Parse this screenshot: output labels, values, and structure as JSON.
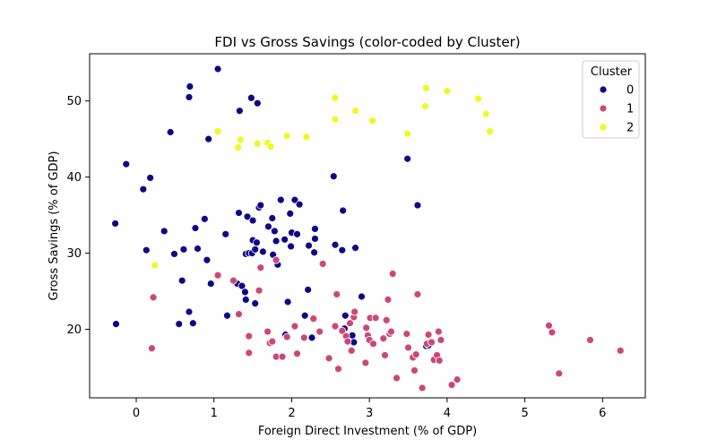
{
  "chart_data": {
    "type": "scatter",
    "title": "FDI vs Gross Savings (color-coded by Cluster)",
    "xlabel": "Foreign Direct Investment (% of GDP)",
    "ylabel": "Gross Savings (% of GDP)",
    "xlim": [
      -0.6,
      6.55
    ],
    "ylim": [
      11,
      56.2
    ],
    "xticks": [
      0,
      1,
      2,
      3,
      4,
      5,
      6
    ],
    "yticks": [
      20,
      30,
      40,
      50
    ],
    "grid": false,
    "legend": {
      "title": "Cluster",
      "position": "top-right"
    },
    "series": [
      {
        "name": "0",
        "color": "#0d0887",
        "points": [
          [
            -0.27,
            33.9
          ],
          [
            -0.26,
            20.7
          ],
          [
            -0.13,
            41.7
          ],
          [
            0.09,
            38.4
          ],
          [
            0.13,
            30.4
          ],
          [
            0.18,
            39.9
          ],
          [
            0.36,
            32.9
          ],
          [
            0.44,
            45.9
          ],
          [
            0.49,
            29.9
          ],
          [
            0.55,
            20.7
          ],
          [
            0.59,
            26.4
          ],
          [
            0.61,
            30.5
          ],
          [
            0.68,
            22.3
          ],
          [
            0.68,
            50.5
          ],
          [
            0.69,
            51.9
          ],
          [
            0.73,
            20.8
          ],
          [
            0.76,
            33.3
          ],
          [
            0.79,
            30.6
          ],
          [
            0.88,
            34.5
          ],
          [
            0.91,
            29.1
          ],
          [
            0.93,
            45.0
          ],
          [
            0.96,
            26.0
          ],
          [
            1.05,
            54.2
          ],
          [
            1.15,
            32.5
          ],
          [
            1.17,
            21.8
          ],
          [
            1.3,
            26.0
          ],
          [
            1.32,
            35.3
          ],
          [
            1.33,
            48.7
          ],
          [
            1.36,
            25.7
          ],
          [
            1.4,
            24.9
          ],
          [
            1.41,
            23.9
          ],
          [
            1.41,
            29.9
          ],
          [
            1.43,
            34.8
          ],
          [
            1.45,
            30.0
          ],
          [
            1.48,
            50.4
          ],
          [
            1.49,
            30.0
          ],
          [
            1.5,
            31.7
          ],
          [
            1.5,
            34.3
          ],
          [
            1.53,
            30.5
          ],
          [
            1.53,
            23.4
          ],
          [
            1.55,
            31.4
          ],
          [
            1.56,
            49.7
          ],
          [
            1.58,
            36.0
          ],
          [
            1.6,
            36.3
          ],
          [
            1.63,
            30.2
          ],
          [
            1.7,
            33.5
          ],
          [
            1.75,
            34.6
          ],
          [
            1.76,
            29.8
          ],
          [
            1.78,
            32.9
          ],
          [
            1.8,
            31.6
          ],
          [
            1.82,
            28.5
          ],
          [
            1.86,
            37.0
          ],
          [
            1.91,
            31.8
          ],
          [
            1.92,
            19.3
          ],
          [
            1.95,
            23.6
          ],
          [
            1.98,
            35.2
          ],
          [
            1.99,
            30.9
          ],
          [
            2.0,
            32.7
          ],
          [
            2.04,
            37.0
          ],
          [
            2.07,
            32.5
          ],
          [
            2.1,
            36.4
          ],
          [
            2.17,
            21.8
          ],
          [
            2.21,
            25.2
          ],
          [
            2.22,
            31.0
          ],
          [
            2.26,
            18.9
          ],
          [
            2.29,
            30.1
          ],
          [
            2.3,
            33.2
          ],
          [
            2.3,
            31.9
          ],
          [
            2.54,
            40.1
          ],
          [
            2.56,
            31.1
          ],
          [
            2.65,
            30.4
          ],
          [
            2.66,
            35.6
          ],
          [
            2.68,
            20.1
          ],
          [
            2.69,
            21.8
          ],
          [
            2.78,
            19.2
          ],
          [
            2.8,
            18.3
          ],
          [
            2.82,
            30.7
          ],
          [
            2.9,
            24.3
          ],
          [
            3.49,
            42.4
          ],
          [
            3.62,
            36.3
          ],
          [
            3.73,
            17.8
          ],
          [
            3.76,
            17.9
          ]
        ]
      },
      {
        "name": "1",
        "color": "#cc4778",
        "points": [
          [
            0.2,
            17.5
          ],
          [
            0.22,
            24.2
          ],
          [
            1.05,
            27.1
          ],
          [
            1.25,
            26.4
          ],
          [
            1.32,
            22.0
          ],
          [
            1.45,
            19.1
          ],
          [
            1.45,
            16.9
          ],
          [
            1.58,
            25.1
          ],
          [
            1.6,
            28.1
          ],
          [
            1.69,
            19.7
          ],
          [
            1.72,
            18.2
          ],
          [
            1.75,
            18.4
          ],
          [
            1.8,
            29.1
          ],
          [
            1.8,
            16.4
          ],
          [
            1.88,
            16.4
          ],
          [
            1.94,
            19.0
          ],
          [
            2.04,
            20.4
          ],
          [
            2.07,
            16.8
          ],
          [
            2.16,
            18.9
          ],
          [
            2.28,
            21.4
          ],
          [
            2.36,
            19.7
          ],
          [
            2.4,
            28.6
          ],
          [
            2.48,
            16.2
          ],
          [
            2.56,
            20.4
          ],
          [
            2.58,
            24.6
          ],
          [
            2.6,
            14.8
          ],
          [
            2.65,
            19.8
          ],
          [
            2.7,
            19.1
          ],
          [
            2.72,
            18.4
          ],
          [
            2.75,
            20.8
          ],
          [
            2.77,
            17.2
          ],
          [
            2.8,
            21.6
          ],
          [
            2.81,
            22.3
          ],
          [
            2.95,
            15.6
          ],
          [
            2.96,
            20.2
          ],
          [
            2.98,
            19.2
          ],
          [
            3.0,
            18.6
          ],
          [
            3.01,
            21.5
          ],
          [
            3.05,
            18.1
          ],
          [
            3.08,
            21.5
          ],
          [
            3.18,
            18.8
          ],
          [
            3.2,
            16.6
          ],
          [
            3.22,
            21.2
          ],
          [
            3.24,
            23.9
          ],
          [
            3.26,
            19.4
          ],
          [
            3.28,
            19.7
          ],
          [
            3.3,
            27.3
          ],
          [
            3.35,
            13.6
          ],
          [
            3.48,
            19.4
          ],
          [
            3.5,
            17.6
          ],
          [
            3.56,
            16.3
          ],
          [
            3.58,
            14.6
          ],
          [
            3.6,
            16.7
          ],
          [
            3.62,
            24.6
          ],
          [
            3.68,
            12.3
          ],
          [
            3.74,
            18.1
          ],
          [
            3.76,
            19.3
          ],
          [
            3.8,
            18.3
          ],
          [
            3.83,
            16.0
          ],
          [
            3.87,
            16.6
          ],
          [
            3.89,
            19.7
          ],
          [
            3.9,
            15.9
          ],
          [
            3.92,
            18.6
          ],
          [
            4.06,
            12.7
          ],
          [
            4.13,
            13.4
          ],
          [
            5.31,
            20.5
          ],
          [
            5.35,
            19.6
          ],
          [
            5.44,
            14.2
          ],
          [
            5.84,
            18.6
          ],
          [
            6.23,
            17.2
          ]
        ]
      },
      {
        "name": "2",
        "color": "#f0f921",
        "points": [
          [
            0.24,
            28.4
          ],
          [
            1.05,
            46.0
          ],
          [
            1.31,
            43.9
          ],
          [
            1.34,
            44.9
          ],
          [
            1.56,
            44.4
          ],
          [
            1.69,
            44.5
          ],
          [
            1.73,
            44.0
          ],
          [
            1.94,
            45.4
          ],
          [
            2.19,
            45.3
          ],
          [
            2.56,
            50.4
          ],
          [
            2.56,
            47.6
          ],
          [
            2.82,
            48.7
          ],
          [
            3.04,
            47.4
          ],
          [
            3.49,
            45.7
          ],
          [
            3.72,
            49.3
          ],
          [
            3.73,
            51.7
          ],
          [
            4.0,
            51.3
          ],
          [
            4.4,
            50.3
          ],
          [
            4.5,
            48.3
          ],
          [
            4.55,
            46.0
          ]
        ]
      }
    ]
  }
}
